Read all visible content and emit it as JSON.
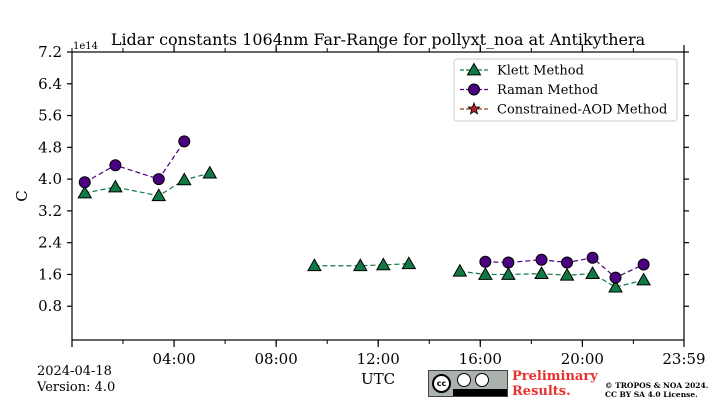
{
  "chart_data": {
    "type": "scatter",
    "title": "Lidar constants 1064nm Far-Range for pollyxt_noa at Antikythera",
    "xlabel": "UTC",
    "ylabel": "C",
    "y_scale_label": "1e14",
    "x_ticks": [
      "04:00",
      "08:00",
      "12:00",
      "16:00",
      "20:00",
      "23:59"
    ],
    "x_tick_hours": [
      4,
      8,
      12,
      16,
      20,
      23.983
    ],
    "xlim_hours": [
      0,
      23.983
    ],
    "y_ticks": [
      "7.2",
      "6.4",
      "5.6",
      "4.8",
      "4.0",
      "3.2",
      "2.4",
      "1.6",
      "0.8"
    ],
    "y_tick_values": [
      7.2,
      6.4,
      5.6,
      4.8,
      4.0,
      3.2,
      2.4,
      1.6,
      0.8
    ],
    "ylim": [
      -0.05,
      7.2
    ],
    "legend_position": "top-right",
    "series": [
      {
        "name": "Klett Method",
        "color": "#0f7a45",
        "marker": "triangle",
        "line_color": "#0f7a45",
        "segments": [
          [
            [
              0.5,
              3.65
            ],
            [
              1.7,
              3.8
            ],
            [
              3.4,
              3.58
            ],
            [
              4.4,
              3.98
            ],
            [
              5.4,
              4.15
            ]
          ],
          [
            [
              9.5,
              1.82
            ],
            [
              11.3,
              1.82
            ],
            [
              12.2,
              1.84
            ],
            [
              13.2,
              1.87
            ]
          ],
          [
            [
              15.2,
              1.68
            ],
            [
              16.2,
              1.6
            ],
            [
              17.1,
              1.6
            ],
            [
              18.4,
              1.62
            ],
            [
              19.4,
              1.58
            ],
            [
              20.4,
              1.62
            ],
            [
              21.3,
              1.28
            ],
            [
              22.4,
              1.46
            ]
          ]
        ]
      },
      {
        "name": "Raman Method",
        "color": "#4b0082",
        "marker": "circle",
        "line_color": "#4b0082",
        "segments": [
          [
            [
              0.5,
              3.92
            ],
            [
              1.7,
              4.35
            ],
            [
              3.4,
              4.0
            ],
            [
              4.4,
              4.95
            ]
          ],
          [
            [
              16.2,
              1.92
            ],
            [
              17.1,
              1.9
            ],
            [
              18.4,
              1.97
            ],
            [
              19.4,
              1.9
            ],
            [
              20.4,
              2.02
            ],
            [
              21.3,
              1.52
            ],
            [
              22.4,
              1.85
            ]
          ]
        ]
      },
      {
        "name": "Constrained-AOD Method",
        "color": "#b22222",
        "marker": "star",
        "line_color": "#8b4513",
        "segments": []
      }
    ]
  },
  "footer": {
    "date": "2024-04-18",
    "version": "Version: 4.0",
    "license_badge": "cc-by-sa-icon",
    "preliminary": "Preliminary Results.",
    "copyright_line1": "© TROPOS & NOA 2024.",
    "copyright_line2": "CC BY SA 4.0 License."
  }
}
